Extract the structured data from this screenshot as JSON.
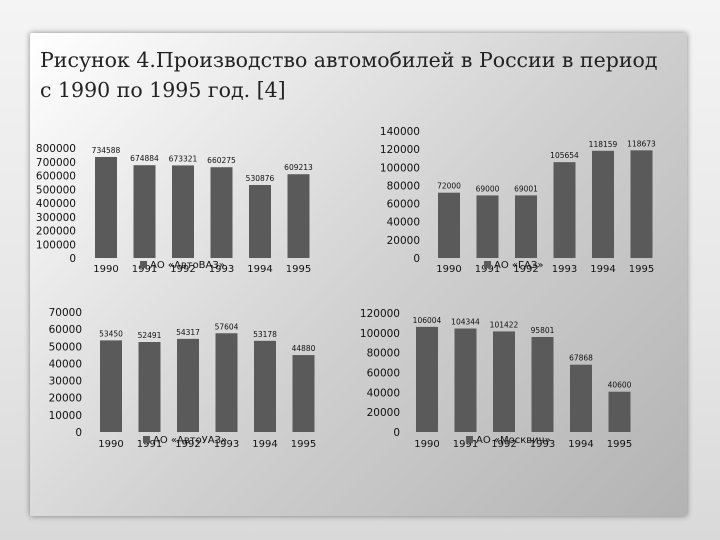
{
  "slide": {
    "title": "Рисунок 4.Производство автомобилей в России в период с 1990 по 1995 год. [4]"
  },
  "colors": {
    "bar": "#5a5a5a",
    "background": "#d0d0d0"
  },
  "chart_data": [
    {
      "type": "bar",
      "categories": [
        "1990",
        "1991",
        "1992",
        "1993",
        "1994",
        "1995"
      ],
      "series": [
        {
          "name": "АО «АвтоВАЗ»",
          "values": [
            734588,
            674884,
            673321,
            660275,
            530876,
            609213
          ]
        }
      ],
      "data_labels": [
        "734588",
        "674884",
        "673321",
        "660275",
        "530876",
        "609213"
      ],
      "y_ticks": [
        "800000",
        "700000",
        "600000",
        "500000",
        "400000",
        "300000",
        "200000",
        "100000",
        "0"
      ],
      "ylim": [
        0,
        800000
      ],
      "legend": "bottom"
    },
    {
      "type": "bar",
      "categories": [
        "1990",
        "1991",
        "1992",
        "1993",
        "1994",
        "1995"
      ],
      "series": [
        {
          "name": "АО «ГАЗ»",
          "values": [
            72000,
            69000,
            69001,
            105654,
            118159,
            118673
          ]
        }
      ],
      "data_labels": [
        "72000",
        "69000",
        "69001",
        "105654",
        "118159",
        "118673"
      ],
      "y_ticks": [
        "140000",
        "120000",
        "100000",
        "80000",
        "60000",
        "40000",
        "20000",
        "0"
      ],
      "ylim": [
        0,
        140000
      ],
      "legend": "bottom"
    },
    {
      "type": "bar",
      "categories": [
        "1990",
        "1991",
        "1992",
        "1993",
        "1994",
        "1995"
      ],
      "series": [
        {
          "name": "АО «АвтоУАЗ»",
          "values": [
            53450,
            52491,
            54317,
            57604,
            53178,
            44880
          ]
        }
      ],
      "data_labels": [
        "53450",
        "52491",
        "54317",
        "57604",
        "53178",
        "44880"
      ],
      "y_ticks": [
        "70000",
        "60000",
        "50000",
        "40000",
        "30000",
        "20000",
        "10000",
        "0"
      ],
      "ylim": [
        0,
        70000
      ],
      "legend": "bottom"
    },
    {
      "type": "bar",
      "categories": [
        "1990",
        "1991",
        "1992",
        "1993",
        "1994",
        "1995"
      ],
      "series": [
        {
          "name": "АО «Москвич»",
          "values": [
            106004,
            104344,
            101422,
            95801,
            67868,
            40600
          ]
        }
      ],
      "data_labels": [
        "106004",
        "104344",
        "101422",
        "95801",
        "67868",
        "40600"
      ],
      "y_ticks": [
        "120000",
        "100000",
        "80000",
        "60000",
        "40000",
        "20000",
        "0"
      ],
      "ylim": [
        0,
        120000
      ],
      "legend": "bottom"
    }
  ]
}
